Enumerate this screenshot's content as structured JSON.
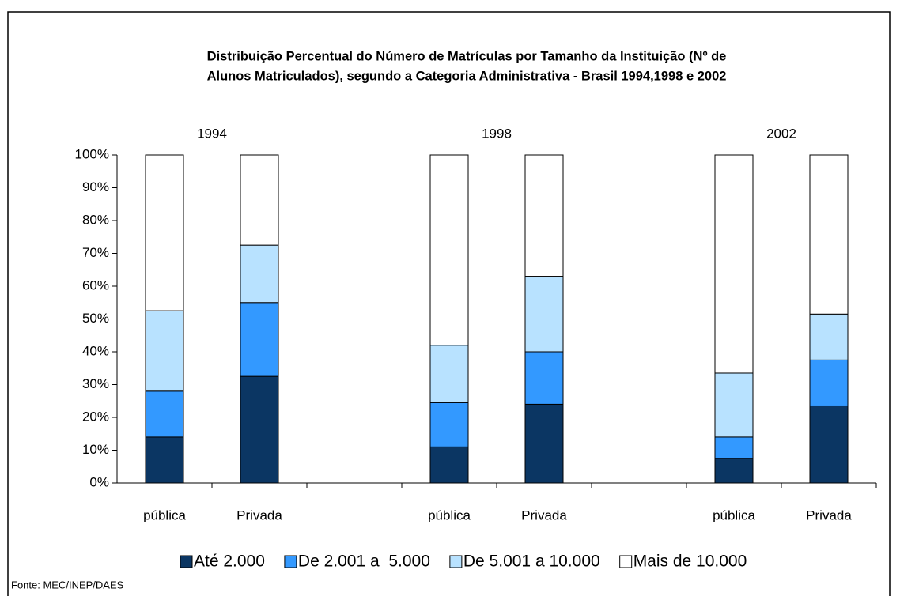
{
  "chart_data": {
    "type": "stacked_bar",
    "title": [
      "Distribuição Percentual do Número de Matrículas por Tamanho da Instituição (Nº de",
      "Alunos Matriculados), segundo a Categoria Administrativa - Brasil 1994,1998 e 2002"
    ],
    "groups": [
      "1994",
      "1998",
      "2002"
    ],
    "categories": [
      "pública",
      "Privada",
      null,
      "pública",
      "Privada",
      null,
      "pública",
      "Privada"
    ],
    "series": [
      {
        "name": "Até 2.000",
        "color": "#0b3663",
        "values": [
          14,
          32.5,
          null,
          11,
          24,
          null,
          7.5,
          23.5
        ]
      },
      {
        "name": "De 2.001 a  5.000",
        "color": "#3399ff",
        "values": [
          14,
          22.5,
          null,
          13.5,
          16,
          null,
          6.5,
          14
        ]
      },
      {
        "name": "De 5.001 a 10.000",
        "color": "#b8e2ff",
        "values": [
          24.5,
          17.5,
          null,
          17.5,
          23,
          null,
          19.5,
          14
        ]
      },
      {
        "name": "Mais de 10.000",
        "color": "#ffffff",
        "values": [
          47.5,
          27.5,
          null,
          58,
          37,
          null,
          66.5,
          48.5
        ]
      }
    ],
    "ylim": [
      0,
      100
    ],
    "yticks": [
      {
        "value": 0,
        "label": "0%"
      },
      {
        "value": 10,
        "label": "10%"
      },
      {
        "value": 20,
        "label": "20%"
      },
      {
        "value": 30,
        "label": "30%"
      },
      {
        "value": 40,
        "label": "40%"
      },
      {
        "value": 50,
        "label": "50%"
      },
      {
        "value": 60,
        "label": "60%"
      },
      {
        "value": 70,
        "label": "70%"
      },
      {
        "value": 80,
        "label": "80%"
      },
      {
        "value": 90,
        "label": "90%"
      },
      {
        "value": 100,
        "label": "100%"
      }
    ],
    "source": "Fonte: MEC/INEP/DAES"
  }
}
